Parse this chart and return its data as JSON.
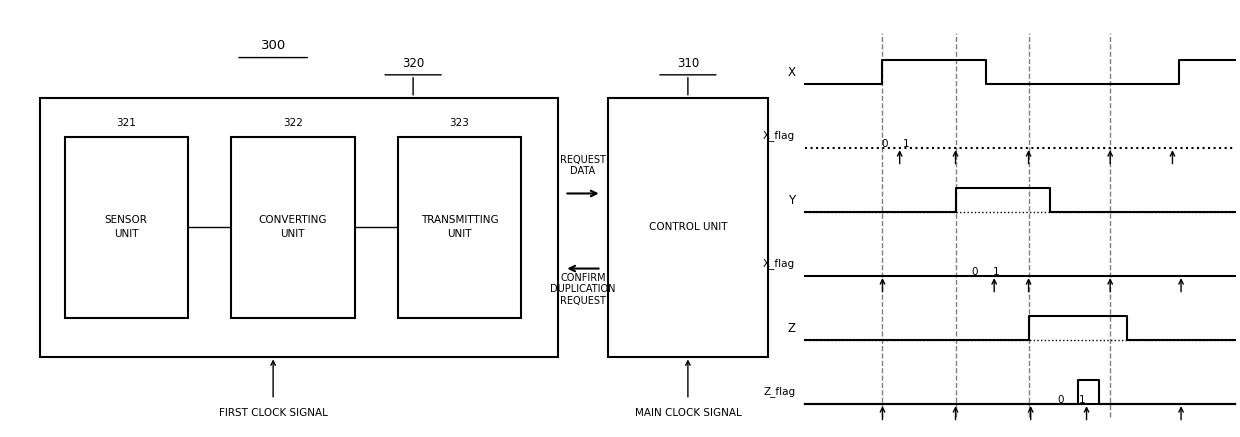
{
  "bg_color": "#ffffff",
  "text_color": "#000000",
  "fig_width": 12.4,
  "fig_height": 4.37,
  "title_300": "300",
  "title_320": "320",
  "title_310": "310",
  "label_321": "321",
  "label_322": "322",
  "label_323": "323",
  "text_sensor": "SENSOR\nUNIT",
  "text_converting": "CONVERTING\nUNIT",
  "text_transmitting": "TRANSMITTING\nUNIT",
  "text_control": "CONTROL UNIT",
  "text_request": "REQUEST\nDATA",
  "text_confirm": "CONFIRM\nDUPLICATION\nREQUEST",
  "text_first_clk": "FIRST CLOCK SIGNAL",
  "text_main_clk": "MAIN CLOCK SIGNAL",
  "signals": [
    "X",
    "X_flag",
    "Y",
    "X_flag",
    "Z",
    "Z_flag"
  ]
}
